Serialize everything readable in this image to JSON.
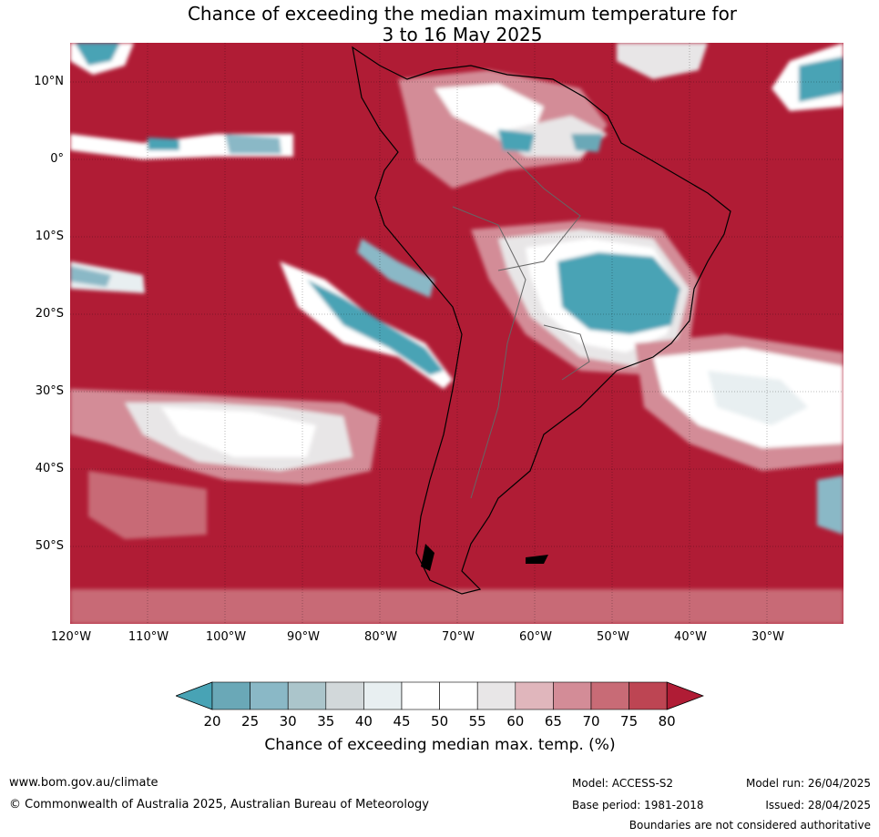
{
  "title": {
    "line1": "Chance of exceeding the median maximum temperature for",
    "line2": "3 to 16 May 2025"
  },
  "map": {
    "region": "South America",
    "lat_labels": [
      "10°N",
      "0°",
      "10°S",
      "20°S",
      "30°S",
      "40°S",
      "50°S"
    ],
    "lon_labels": [
      "120°W",
      "110°W",
      "100°W",
      "90°W",
      "80°W",
      "70°W",
      "60°W",
      "50°W",
      "40°W",
      "30°W"
    ],
    "background_color": "#b01c35"
  },
  "colorbar": {
    "ticks": [
      "20",
      "25",
      "30",
      "35",
      "40",
      "45",
      "50",
      "55",
      "60",
      "65",
      "70",
      "75",
      "80"
    ],
    "colors": [
      "#48a3b5",
      "#6aa8b7",
      "#8ab8c6",
      "#abc5cb",
      "#d2d8da",
      "#e8eff1",
      "#ffffff",
      "#ffffff",
      "#e8e6e7",
      "#e0b6bc",
      "#d38c97",
      "#c86b76",
      "#bd4553",
      "#b01c35"
    ],
    "label": "Chance of exceeding median max. temp. (%)"
  },
  "footer": {
    "url": "www.bom.gov.au/climate",
    "copyright": "© Commonwealth of Australia 2025, Australian Bureau of Meteorology",
    "model": "Model: ACCESS-S2",
    "base_period": "Base period: 1981-2018",
    "model_run": "Model run: 26/04/2025",
    "issued": "Issued: 28/04/2025",
    "disclaimer": "Boundaries are not considered authoritative"
  }
}
